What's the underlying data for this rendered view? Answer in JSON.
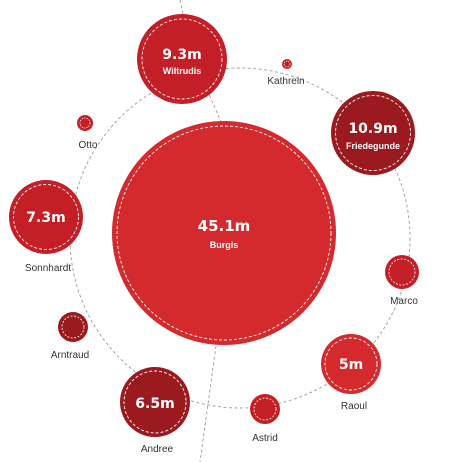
{
  "colors": {
    "bright_red": "#d42a2e",
    "red": "#c41f26",
    "dark_red": "#9b1a1f",
    "ring": "#9a9a9a",
    "inner_dash": "#ffffff",
    "outside_label": "#333333"
  },
  "nodes": [
    {
      "id": "burgis",
      "name": "Burgis",
      "value": "45.1m",
      "tone": "bright_red"
    },
    {
      "id": "wiltrudis",
      "name": "Wiltrudis",
      "value": "9.3m",
      "tone": "red"
    },
    {
      "id": "kathrein",
      "name": "Kathrein",
      "value": "",
      "tone": "red"
    },
    {
      "id": "friedegunde",
      "name": "Friedegunde",
      "value": "10.9m",
      "tone": "dark_red"
    },
    {
      "id": "marco",
      "name": "Marco",
      "value": "",
      "tone": "red"
    },
    {
      "id": "raoul",
      "name": "Raoul",
      "value": "5m",
      "tone": "bright_red"
    },
    {
      "id": "astrid",
      "name": "Astrid",
      "value": "",
      "tone": "red"
    },
    {
      "id": "andree",
      "name": "Andree",
      "value": "6.5m",
      "tone": "dark_red"
    },
    {
      "id": "arntraud",
      "name": "Arntraud",
      "value": "",
      "tone": "dark_red"
    },
    {
      "id": "sonnhardt",
      "name": "Sonnhardt",
      "value": "7.3m",
      "tone": "red"
    },
    {
      "id": "otto",
      "name": "Otto",
      "value": "",
      "tone": "red"
    }
  ]
}
